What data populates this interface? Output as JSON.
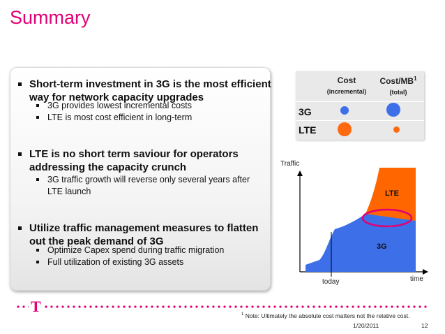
{
  "title": "Summary",
  "bullets": [
    {
      "line1": "Short-term investment in 3G is the most efficient",
      "line2": "way for network capacity upgrades",
      "subs": [
        "3G provides lowest incremental costs",
        "LTE is most cost efficient in long-term"
      ]
    },
    {
      "line1": "LTE is no short term saviour for operators",
      "line2": "addressing the capacity crunch",
      "subs": [
        "3G traffic growth will reverse only several years after",
        "LTE launch"
      ]
    },
    {
      "line1": "Utilize traffic management measures to flatten",
      "line2": "out the peak demand of 3G",
      "subs": [
        "Optimize Capex spend during traffic migration",
        "Full utilization of existing 3G assets"
      ]
    }
  ],
  "table": {
    "col1": {
      "h1": "Cost",
      "h2": "(incremental)"
    },
    "col2": {
      "h1": "Cost/MB",
      "sup": "1",
      "h2": "(total)"
    },
    "rows": [
      {
        "label": "3G",
        "cost": "small",
        "cost_mb": "large"
      },
      {
        "label": "LTE",
        "cost": "large",
        "cost_mb": "small"
      }
    ],
    "colors": {
      "3g": "#3d6fe8",
      "lte": "#ff6a10"
    }
  },
  "chart": {
    "y_label": "Traffic",
    "x_label": "time",
    "marker_label": "today",
    "area_labels": {
      "lte": "LTE",
      "g3": "3G"
    },
    "colors": {
      "lte": "#ff6600",
      "g3": "#3d6fe8",
      "highlight": "#e20074"
    }
  },
  "footer": {
    "logo": "T",
    "note_sup": "1",
    "note": "Note: Ultimately the absolute cost matters not the relative cost.",
    "date": "1/20/2011",
    "page": "12"
  }
}
